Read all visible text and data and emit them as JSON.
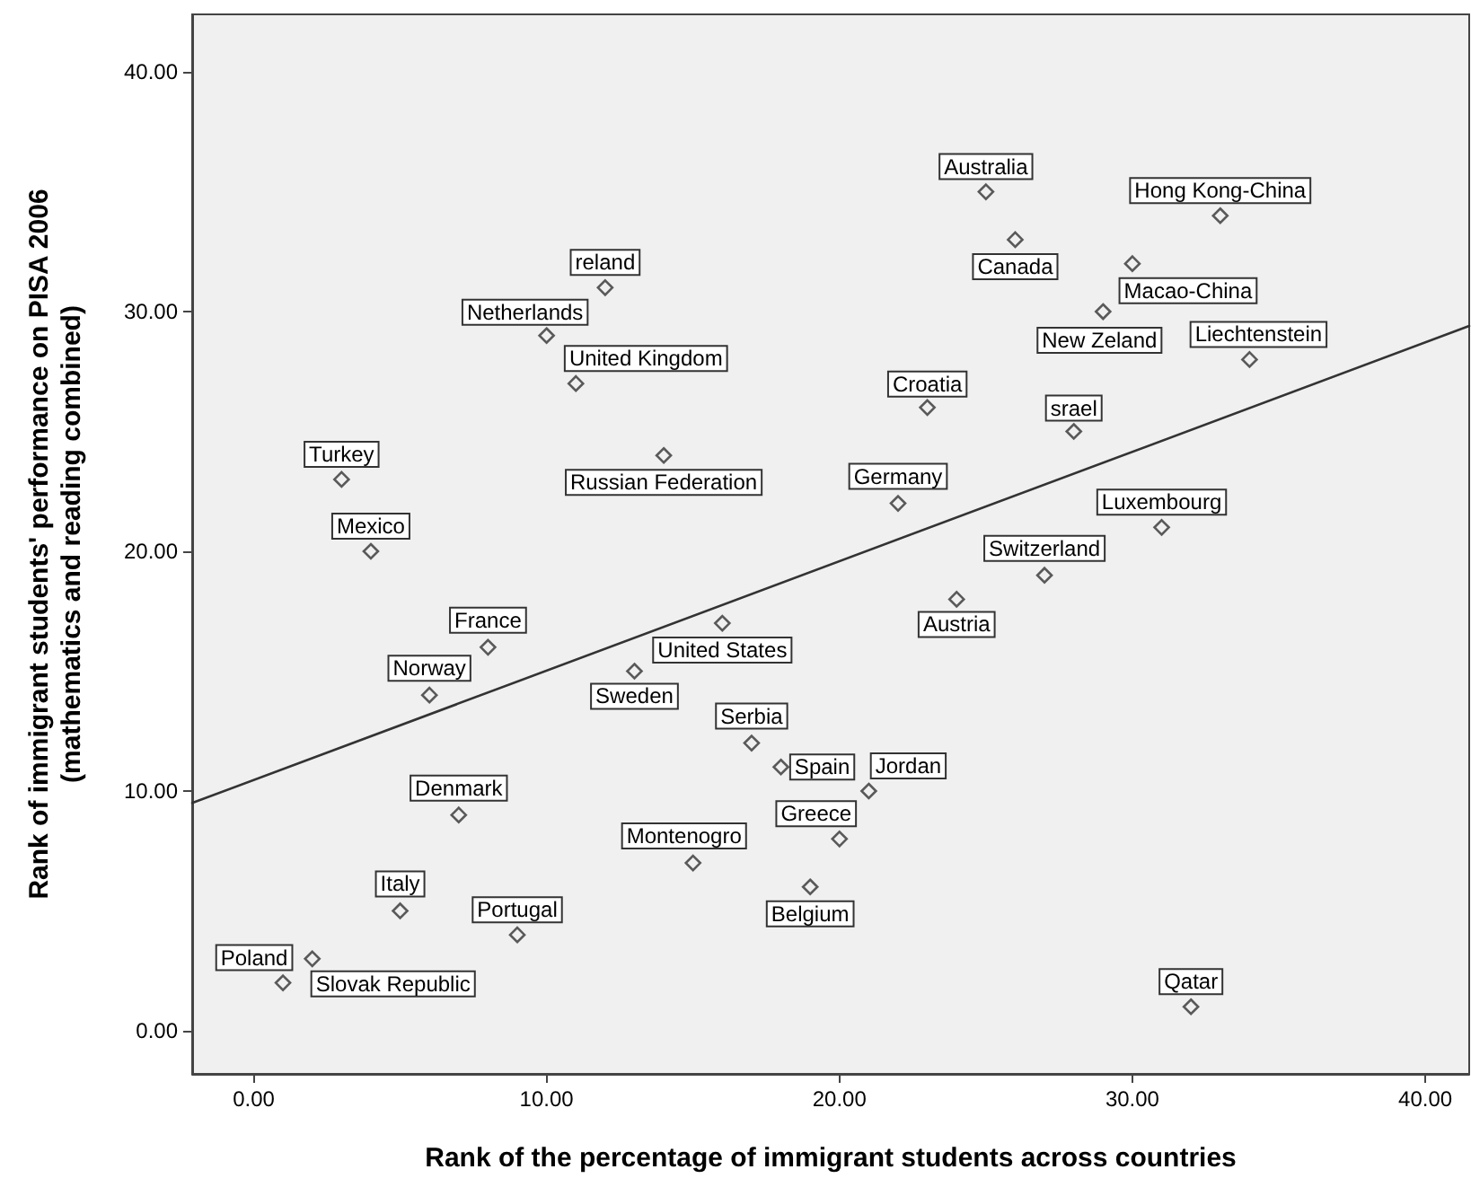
{
  "chart_data": {
    "type": "scatter",
    "xlabel": "Rank of the percentage of immigrant students across countries",
    "ylabel": "Rank of immigrant students' performance on PISA 2006\n(mathematics and reading combined)",
    "xlim": [
      -2.1,
      41.5
    ],
    "ylim": [
      -1.8,
      42.4
    ],
    "xticks": [
      {
        "value": 0,
        "label": "0.00"
      },
      {
        "value": 10,
        "label": "10.00"
      },
      {
        "value": 20,
        "label": "20.00"
      },
      {
        "value": 30,
        "label": "30.00"
      },
      {
        "value": 40,
        "label": "40.00"
      }
    ],
    "yticks": [
      {
        "value": 0,
        "label": "0.00"
      },
      {
        "value": 10,
        "label": "10.00"
      },
      {
        "value": 20,
        "label": "20.00"
      },
      {
        "value": 30,
        "label": "30.00"
      },
      {
        "value": 40,
        "label": "40.00"
      }
    ],
    "grid": false,
    "series": [
      {
        "type": "scatter",
        "color": "#333333",
        "marker": "diamond",
        "x": [
          1,
          2,
          3,
          4,
          5,
          6,
          7,
          8,
          9,
          10,
          11,
          12,
          13,
          14,
          15,
          16,
          17,
          18,
          19,
          20,
          21,
          22,
          23,
          24,
          25,
          26,
          27,
          28,
          29,
          30,
          31,
          32,
          33,
          34
        ],
        "values": [
          2,
          3,
          23,
          20,
          5,
          14,
          9,
          16,
          4,
          29,
          27,
          31,
          15,
          24,
          7,
          17,
          12,
          11,
          6,
          8,
          10,
          22,
          26,
          18,
          35,
          33,
          19,
          25,
          30,
          32,
          21,
          1,
          34,
          28
        ]
      },
      {
        "type": "line",
        "color": "#333333",
        "marker": "none",
        "line_style": "solid",
        "x": [
          -2.1,
          41.5
        ],
        "values": [
          9.5,
          29.4
        ]
      }
    ],
    "annotations": [
      {
        "text": "Poland",
        "x": 1,
        "y": 2
      },
      {
        "text": "Slovak Republic",
        "x": 2,
        "y": 3
      },
      {
        "text": "Turkey",
        "x": 3,
        "y": 23
      },
      {
        "text": "Mexico",
        "x": 4,
        "y": 20
      },
      {
        "text": "Italy",
        "x": 5,
        "y": 5
      },
      {
        "text": "Norway",
        "x": 6,
        "y": 14
      },
      {
        "text": "Denmark",
        "x": 7,
        "y": 9
      },
      {
        "text": "France",
        "x": 8,
        "y": 16
      },
      {
        "text": "Portugal",
        "x": 9,
        "y": 4
      },
      {
        "text": "Netherlands",
        "x": 10,
        "y": 29
      },
      {
        "text": "United Kingdom",
        "x": 11,
        "y": 27
      },
      {
        "text": "reland",
        "x": 12,
        "y": 31
      },
      {
        "text": "Sweden",
        "x": 13,
        "y": 15
      },
      {
        "text": "Russian Federation",
        "x": 14,
        "y": 24
      },
      {
        "text": "Montenogro",
        "x": 15,
        "y": 7
      },
      {
        "text": "United States",
        "x": 16,
        "y": 17
      },
      {
        "text": "Serbia",
        "x": 17,
        "y": 12
      },
      {
        "text": "Spain",
        "x": 18,
        "y": 11
      },
      {
        "text": "Belgium",
        "x": 19,
        "y": 6
      },
      {
        "text": "Greece",
        "x": 20,
        "y": 8
      },
      {
        "text": "Jordan",
        "x": 21,
        "y": 10
      },
      {
        "text": "Germany",
        "x": 22,
        "y": 22
      },
      {
        "text": "Croatia",
        "x": 23,
        "y": 26
      },
      {
        "text": "Austria",
        "x": 24,
        "y": 18
      },
      {
        "text": "Australia",
        "x": 25,
        "y": 35
      },
      {
        "text": "Canada",
        "x": 26,
        "y": 33
      },
      {
        "text": "Switzerland",
        "x": 27,
        "y": 19
      },
      {
        "text": "srael",
        "x": 28,
        "y": 25
      },
      {
        "text": "New Zeland",
        "x": 29,
        "y": 30
      },
      {
        "text": "Macao-China",
        "x": 30,
        "y": 32
      },
      {
        "text": "Luxembourg",
        "x": 31,
        "y": 21
      },
      {
        "text": "Qatar",
        "x": 32,
        "y": 1
      },
      {
        "text": "Hong Kong-China",
        "x": 33,
        "y": 34
      },
      {
        "text": "Liechtenstein",
        "x": 34,
        "y": 28
      }
    ]
  }
}
